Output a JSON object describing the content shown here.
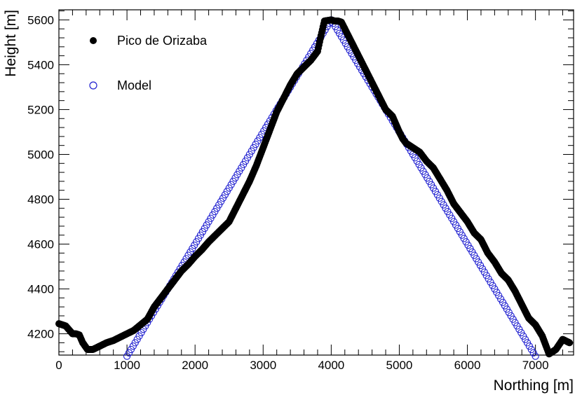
{
  "chart_data": {
    "type": "scatter",
    "xlabel": "Northing [m]",
    "ylabel": "Height [m]",
    "xlim": [
      0,
      7560
    ],
    "ylim": [
      4105,
      5645
    ],
    "x_ticks": [
      0,
      1000,
      2000,
      3000,
      4000,
      5000,
      6000,
      7000
    ],
    "y_ticks": [
      4200,
      4400,
      4600,
      4800,
      5000,
      5200,
      5400,
      5600
    ],
    "legend_position": "top-left",
    "series": [
      {
        "name": "Pico de Orizaba",
        "marker": "filled-circle",
        "color": "#000000",
        "points": [
          [
            0,
            4245
          ],
          [
            100,
            4235
          ],
          [
            200,
            4200
          ],
          [
            250,
            4200
          ],
          [
            300,
            4195
          ],
          [
            350,
            4160
          ],
          [
            420,
            4130
          ],
          [
            500,
            4130
          ],
          [
            600,
            4145
          ],
          [
            700,
            4160
          ],
          [
            800,
            4170
          ],
          [
            900,
            4185
          ],
          [
            1000,
            4200
          ],
          [
            1100,
            4215
          ],
          [
            1200,
            4240
          ],
          [
            1300,
            4265
          ],
          [
            1400,
            4320
          ],
          [
            1500,
            4360
          ],
          [
            1600,
            4400
          ],
          [
            1700,
            4440
          ],
          [
            1800,
            4480
          ],
          [
            1900,
            4510
          ],
          [
            2000,
            4545
          ],
          [
            2100,
            4575
          ],
          [
            2200,
            4610
          ],
          [
            2300,
            4640
          ],
          [
            2400,
            4670
          ],
          [
            2500,
            4700
          ],
          [
            2600,
            4760
          ],
          [
            2700,
            4820
          ],
          [
            2800,
            4880
          ],
          [
            2900,
            4950
          ],
          [
            3000,
            5030
          ],
          [
            3100,
            5110
          ],
          [
            3200,
            5190
          ],
          [
            3300,
            5250
          ],
          [
            3400,
            5310
          ],
          [
            3500,
            5360
          ],
          [
            3600,
            5390
          ],
          [
            3700,
            5420
          ],
          [
            3800,
            5460
          ],
          [
            3850,
            5530
          ],
          [
            3900,
            5595
          ],
          [
            4000,
            5600
          ],
          [
            4050,
            5595
          ],
          [
            4100,
            5595
          ],
          [
            4150,
            5590
          ],
          [
            4200,
            5560
          ],
          [
            4300,
            5500
          ],
          [
            4400,
            5440
          ],
          [
            4500,
            5380
          ],
          [
            4600,
            5320
          ],
          [
            4700,
            5260
          ],
          [
            4800,
            5200
          ],
          [
            4900,
            5170
          ],
          [
            5000,
            5100
          ],
          [
            5050,
            5070
          ],
          [
            5100,
            5050
          ],
          [
            5200,
            5030
          ],
          [
            5300,
            5010
          ],
          [
            5400,
            4970
          ],
          [
            5500,
            4940
          ],
          [
            5600,
            4890
          ],
          [
            5700,
            4840
          ],
          [
            5800,
            4780
          ],
          [
            5900,
            4740
          ],
          [
            6000,
            4700
          ],
          [
            6100,
            4650
          ],
          [
            6200,
            4620
          ],
          [
            6300,
            4560
          ],
          [
            6400,
            4520
          ],
          [
            6500,
            4470
          ],
          [
            6600,
            4440
          ],
          [
            6700,
            4390
          ],
          [
            6800,
            4330
          ],
          [
            6900,
            4270
          ],
          [
            7000,
            4240
          ],
          [
            7100,
            4190
          ],
          [
            7200,
            4110
          ],
          [
            7300,
            4130
          ],
          [
            7400,
            4175
          ],
          [
            7500,
            4160
          ]
        ]
      },
      {
        "name": "Model",
        "marker": "open-circle",
        "color": "#1f1fd0",
        "peak": [
          4000,
          5600
        ],
        "x_start": 1000,
        "x_end": 7000,
        "y_at_ends": 4100
      }
    ]
  }
}
